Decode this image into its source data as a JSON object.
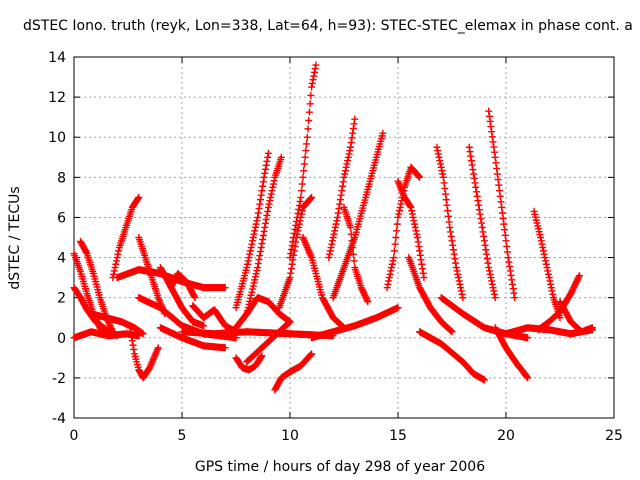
{
  "chart_data": {
    "type": "scatter",
    "title": "dSTEC Iono. truth (reyk, Lon=338, Lat=64, h=93): STEC-STEC_elemax in phase cont. a",
    "xlabel": "GPS time / hours of day 298 of year 2006",
    "ylabel": "dSTEC / TECUs",
    "xlim": [
      0,
      25
    ],
    "ylim": [
      -4,
      14
    ],
    "xticks": [
      0,
      5,
      10,
      15,
      20,
      25
    ],
    "yticks": [
      -4,
      -2,
      0,
      2,
      4,
      6,
      8,
      10,
      12,
      14
    ],
    "grid": true,
    "marker": "+",
    "color": "#ff0000",
    "series": [
      {
        "x": [
          0.0,
          0.3,
          0.6,
          0.9,
          1.2,
          1.5
        ],
        "y": [
          4.2,
          3.3,
          2.2,
          1.2,
          0.5,
          0.2
        ]
      },
      {
        "x": [
          0.0,
          0.3,
          0.6,
          1.0,
          1.5,
          2.0
        ],
        "y": [
          2.5,
          2.0,
          1.4,
          0.8,
          0.4,
          0.1
        ]
      },
      {
        "x": [
          0.3,
          0.6,
          0.9,
          1.2,
          1.5,
          1.8
        ],
        "y": [
          4.8,
          4.2,
          3.2,
          2.0,
          1.0,
          0.3
        ]
      },
      {
        "x": [
          0.0,
          0.8,
          1.6,
          2.4,
          3.0
        ],
        "y": [
          0.0,
          0.3,
          0.1,
          0.2,
          0.1
        ]
      },
      {
        "x": [
          1.8,
          2.1,
          2.4,
          2.7,
          3.0
        ],
        "y": [
          3.0,
          4.5,
          5.5,
          6.5,
          7.0
        ]
      },
      {
        "x": [
          0.8,
          1.5,
          2.2,
          2.8,
          3.2
        ],
        "y": [
          1.2,
          1.0,
          0.8,
          0.5,
          0.2
        ]
      },
      {
        "x": [
          3.0,
          3.3,
          3.6,
          3.9,
          4.2
        ],
        "y": [
          5.0,
          4.0,
          3.0,
          2.0,
          1.2
        ]
      },
      {
        "x": [
          2.6,
          2.8,
          3.0,
          3.2,
          3.5,
          3.9
        ],
        "y": [
          0.5,
          -0.8,
          -1.6,
          -2.0,
          -1.5,
          -0.5
        ]
      },
      {
        "x": [
          2.0,
          3.0,
          4.0,
          5.0,
          6.0,
          7.0
        ],
        "y": [
          3.0,
          3.4,
          3.2,
          2.8,
          2.5,
          2.5
        ]
      },
      {
        "x": [
          3.0,
          4.0,
          5.0,
          6.0,
          7.5
        ],
        "y": [
          2.0,
          1.5,
          0.6,
          0.2,
          0.0
        ]
      },
      {
        "x": [
          4.0,
          4.5,
          5.0,
          5.5,
          6.0
        ],
        "y": [
          3.5,
          2.5,
          1.5,
          0.8,
          0.6
        ]
      },
      {
        "x": [
          4.5,
          4.8,
          5.2,
          5.6
        ],
        "y": [
          2.5,
          3.2,
          2.8,
          2.0
        ]
      },
      {
        "x": [
          4.0,
          5.0,
          6.0,
          7.0
        ],
        "y": [
          0.5,
          0.0,
          -0.4,
          -0.5
        ]
      },
      {
        "x": [
          5.5,
          6.0,
          6.5,
          7.0,
          7.5
        ],
        "y": [
          1.6,
          1.0,
          1.4,
          0.6,
          0.3
        ]
      },
      {
        "x": [
          7.5,
          7.8,
          8.1,
          8.4,
          8.7
        ],
        "y": [
          -1.0,
          -1.5,
          -1.6,
          -1.4,
          -0.9
        ]
      },
      {
        "x": [
          7.5,
          8.0,
          8.5,
          8.8,
          9.0
        ],
        "y": [
          1.5,
          3.5,
          6.0,
          8.0,
          9.2
        ]
      },
      {
        "x": [
          8.0,
          8.5,
          9.0,
          9.3,
          9.6
        ],
        "y": [
          1.2,
          3.5,
          6.5,
          8.0,
          9.0
        ]
      },
      {
        "x": [
          7.5,
          8.0,
          8.5,
          9.0,
          9.5,
          10.0
        ],
        "y": [
          0.5,
          1.2,
          2.0,
          1.8,
          1.2,
          0.8
        ]
      },
      {
        "x": [
          9.3,
          9.6,
          10.0,
          10.5,
          11.0
        ],
        "y": [
          -2.6,
          -2.0,
          -1.7,
          -1.4,
          -0.8
        ]
      },
      {
        "x": [
          8.0,
          8.5,
          9.0,
          9.5,
          10.0
        ],
        "y": [
          -1.2,
          -0.7,
          -0.2,
          0.3,
          0.8
        ]
      },
      {
        "x": [
          9.5,
          10.0,
          10.3,
          10.6,
          11.0
        ],
        "y": [
          1.5,
          3.0,
          5.0,
          6.5,
          7.0
        ]
      },
      {
        "x": [
          10.0,
          10.5,
          10.8,
          11.0,
          11.2
        ],
        "y": [
          4.0,
          7.0,
          10.0,
          12.5,
          13.6
        ]
      },
      {
        "x": [
          10.6,
          11.0,
          11.5,
          12.0,
          12.5
        ],
        "y": [
          5.0,
          4.0,
          2.0,
          1.0,
          0.5
        ]
      },
      {
        "x": [
          11.8,
          12.2,
          12.5,
          12.8,
          13.0
        ],
        "y": [
          4.0,
          6.0,
          8.0,
          9.5,
          10.9
        ]
      },
      {
        "x": [
          12.0,
          12.5,
          13.0,
          13.5,
          14.0,
          14.3
        ],
        "y": [
          2.0,
          3.5,
          5.0,
          7.0,
          9.0,
          10.2
        ]
      },
      {
        "x": [
          12.5,
          12.8,
          13.0,
          13.3,
          13.6
        ],
        "y": [
          6.5,
          5.5,
          3.5,
          2.5,
          1.8
        ]
      },
      {
        "x": [
          11.0,
          12.0,
          13.0,
          14.0,
          15.0
        ],
        "y": [
          0.0,
          0.3,
          0.6,
          1.0,
          1.5
        ]
      },
      {
        "x": [
          14.5,
          14.8,
          15.0,
          15.3,
          15.6,
          16.0
        ],
        "y": [
          2.5,
          4.0,
          6.0,
          7.5,
          8.5,
          8.0
        ]
      },
      {
        "x": [
          15.0,
          15.3,
          15.6,
          15.9,
          16.2
        ],
        "y": [
          7.8,
          7.0,
          6.5,
          5.0,
          3.0
        ]
      },
      {
        "x": [
          15.5,
          16.0,
          16.5,
          17.0,
          17.5
        ],
        "y": [
          4.0,
          2.5,
          1.5,
          0.8,
          0.3
        ]
      },
      {
        "x": [
          16.8,
          17.1,
          17.4,
          17.7,
          18.0
        ],
        "y": [
          9.5,
          8.0,
          5.5,
          3.5,
          2.0
        ]
      },
      {
        "x": [
          18.3,
          18.6,
          18.9,
          19.2,
          19.5
        ],
        "y": [
          9.5,
          7.5,
          5.5,
          3.5,
          2.0
        ]
      },
      {
        "x": [
          19.2,
          19.5,
          19.8,
          20.1,
          20.4
        ],
        "y": [
          11.3,
          9.0,
          6.5,
          4.0,
          2.0
        ]
      },
      {
        "x": [
          16.0,
          17.0,
          18.0,
          18.5,
          19.0
        ],
        "y": [
          0.3,
          -0.3,
          -1.2,
          -1.8,
          -2.1
        ]
      },
      {
        "x": [
          19.5,
          20.0,
          20.5,
          20.8,
          21.0
        ],
        "y": [
          0.5,
          -0.5,
          -1.3,
          -1.7,
          -2.0
        ]
      },
      {
        "x": [
          21.3,
          21.6,
          21.9,
          22.2,
          22.5
        ],
        "y": [
          6.3,
          5.0,
          3.5,
          2.0,
          1.0
        ]
      },
      {
        "x": [
          21.5,
          22.0,
          22.5,
          23.0,
          23.4
        ],
        "y": [
          0.4,
          0.8,
          1.3,
          2.2,
          3.1
        ]
      },
      {
        "x": [
          20.0,
          21.0,
          22.0,
          23.0,
          24.0
        ],
        "y": [
          0.2,
          0.5,
          0.4,
          0.2,
          0.4
        ]
      },
      {
        "x": [
          22.5,
          23.0,
          23.5,
          24.0
        ],
        "y": [
          1.8,
          0.8,
          0.3,
          0.5
        ]
      },
      {
        "x": [
          17.0,
          18.0,
          19.0,
          20.0,
          21.0
        ],
        "y": [
          2.0,
          1.2,
          0.5,
          0.2,
          0.0
        ]
      },
      {
        "x": [
          5.0,
          6.5,
          8.0,
          10.0,
          12.0
        ],
        "y": [
          0.3,
          0.2,
          0.3,
          0.2,
          0.1
        ]
      }
    ]
  }
}
